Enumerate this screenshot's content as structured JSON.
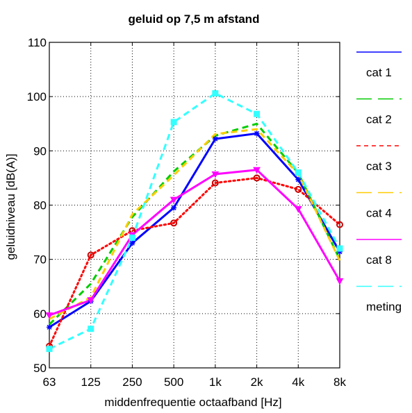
{
  "chart_data": {
    "type": "line",
    "title": "geluid op 7,5 m afstand",
    "xlabel": "middenfrequentie octaafband [Hz]",
    "ylabel": "geluidniveau [dB(A)]",
    "categories": [
      "63",
      "125",
      "250",
      "500",
      "1k",
      "2k",
      "4k",
      "8k"
    ],
    "ylim": [
      50,
      110
    ],
    "yticks": [
      50,
      60,
      70,
      80,
      90,
      100,
      110
    ],
    "grid": true,
    "legend_position": "right",
    "series": [
      {
        "name": "cat 1",
        "values": [
          57.5,
          62.3,
          73.0,
          79.5,
          92.2,
          93.2,
          84.7,
          71.4
        ],
        "color": "#0000ff",
        "line_style": "solid",
        "marker": "star"
      },
      {
        "name": "cat 2",
        "values": [
          58.0,
          65.5,
          77.8,
          86.2,
          92.8,
          95.0,
          85.9,
          70.0
        ],
        "color": "#00cc00",
        "line_style": "dashed",
        "marker": "none"
      },
      {
        "name": "cat 3",
        "values": [
          54.0,
          70.8,
          75.3,
          76.7,
          84.1,
          85.0,
          82.9,
          76.4
        ],
        "color": "#ff0000",
        "line_style": "dotted",
        "marker": "circle",
        "marker_color": "#cc0000"
      },
      {
        "name": "cat 4",
        "values": [
          59.0,
          63.0,
          78.3,
          85.5,
          93.1,
          94.0,
          85.7,
          69.8
        ],
        "color": "#ffcc00",
        "line_style": "dashed",
        "marker": "none"
      },
      {
        "name": "cat 8",
        "values": [
          59.7,
          62.5,
          74.5,
          81.0,
          85.7,
          86.5,
          79.3,
          66.0
        ],
        "color": "#ff00ff",
        "line_style": "solid",
        "marker": "triangle-down"
      },
      {
        "name": "meting",
        "values": [
          53.5,
          57.2,
          74.0,
          95.3,
          100.6,
          96.8,
          86.0,
          72.0
        ],
        "color": "#33ffff",
        "line_style": "dashed",
        "marker": "square"
      }
    ]
  }
}
